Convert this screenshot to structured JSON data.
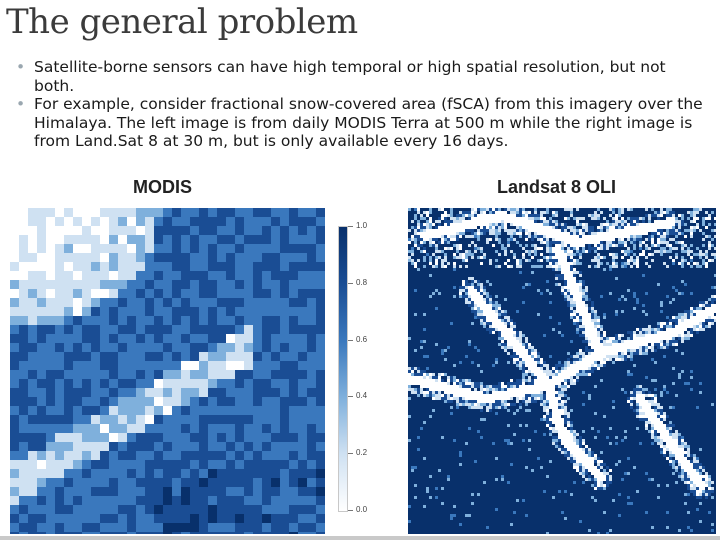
{
  "slide": {
    "title": "The general problem",
    "bullets": [
      "Satellite-borne sensors can have high temporal or high spatial resolution, but not both.",
      "For example, consider fractional snow-covered area (fSCA) from this imagery over the Himalaya. The left image is from daily MODIS Terra at 500 m while the right image is from Land.Sat 8 at 30 m, but is only available every 16 days."
    ],
    "bullet_icon": "•"
  },
  "figure": {
    "left_label": "MODIS",
    "right_label": "Landsat 8 OLI",
    "colorbar": {
      "ticks": [
        "1.0",
        "0.8",
        "0.6",
        "0.4",
        "0.2",
        "0.0"
      ],
      "colors": [
        "#08306b",
        "#1a4d94",
        "#3a78bd",
        "#7fb0dc",
        "#cfe1f2",
        "#ffffff"
      ]
    }
  }
}
